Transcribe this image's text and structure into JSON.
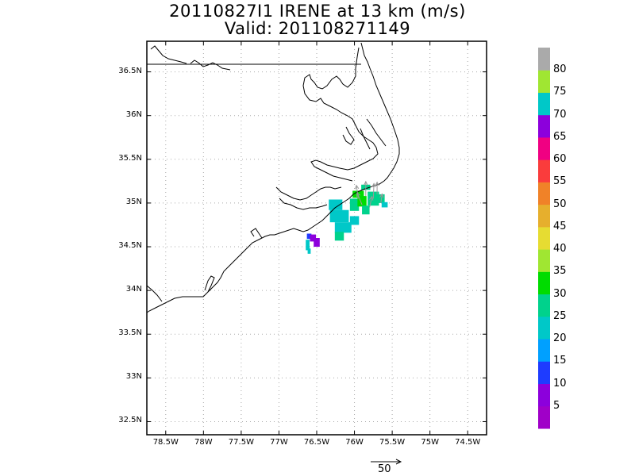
{
  "title_line1": "20110827I1 IRENE at 13 km (m/s)",
  "title_line2": "Valid: 201108271149",
  "map": {
    "lon_range": [
      -78.75,
      -74.25
    ],
    "lat_range": [
      32.35,
      36.85
    ],
    "grid": "dotted",
    "lat_labels": [
      "36.5N",
      "36N",
      "35.5N",
      "35N",
      "34.5N",
      "34N",
      "33.5N",
      "33N",
      "32.5N"
    ],
    "lat_values": [
      36.5,
      36.0,
      35.5,
      35.0,
      34.5,
      34.0,
      33.5,
      33.0,
      32.5
    ],
    "lon_labels": [
      "78.5W",
      "78W",
      "77.5W",
      "77W",
      "76.5W",
      "76W",
      "75.5W",
      "75W",
      "74.5W"
    ],
    "lon_values": [
      -78.5,
      -78.0,
      -77.5,
      -77.0,
      -76.5,
      -76.0,
      -75.5,
      -75.0,
      -74.5
    ]
  },
  "colorbar": {
    "labels": [
      "5",
      "10",
      "15",
      "20",
      "25",
      "30",
      "35",
      "40",
      "45",
      "50",
      "55",
      "60",
      "65",
      "70",
      "75",
      "80"
    ],
    "colors": [
      "#a000c8",
      "#8c00dc",
      "#1e3cff",
      "#00a0ff",
      "#00c8c8",
      "#00d28c",
      "#00dc00",
      "#a0e632",
      "#e6dc32",
      "#e6af2d",
      "#f08228",
      "#fa3c3c",
      "#f00082",
      "#8c00dc",
      "#00c8c8",
      "#a0e632",
      "#aaaaaa"
    ]
  },
  "wind_cells": [
    {
      "lon": -76.6,
      "lat": 34.62,
      "w": 0.06,
      "h": 0.06,
      "v": 12
    },
    {
      "lon": -76.55,
      "lat": 34.6,
      "w": 0.08,
      "h": 0.08,
      "v": 8
    },
    {
      "lon": -76.5,
      "lat": 34.55,
      "w": 0.08,
      "h": 0.1,
      "v": 5
    },
    {
      "lon": -76.62,
      "lat": 34.52,
      "w": 0.05,
      "h": 0.12,
      "v": 22
    },
    {
      "lon": -76.6,
      "lat": 34.45,
      "w": 0.04,
      "h": 0.06,
      "v": 20
    },
    {
      "lon": -76.25,
      "lat": 34.98,
      "w": 0.18,
      "h": 0.12,
      "v": 22
    },
    {
      "lon": -76.2,
      "lat": 34.85,
      "w": 0.25,
      "h": 0.14,
      "v": 22
    },
    {
      "lon": -76.15,
      "lat": 34.72,
      "w": 0.22,
      "h": 0.12,
      "v": 22
    },
    {
      "lon": -76.2,
      "lat": 34.62,
      "w": 0.12,
      "h": 0.1,
      "v": 25
    },
    {
      "lon": -76.0,
      "lat": 34.8,
      "w": 0.12,
      "h": 0.1,
      "v": 22
    },
    {
      "lon": -76.0,
      "lat": 34.98,
      "w": 0.12,
      "h": 0.14,
      "v": 25
    },
    {
      "lon": -75.95,
      "lat": 35.1,
      "w": 0.15,
      "h": 0.08,
      "v": 34
    },
    {
      "lon": -75.9,
      "lat": 35.02,
      "w": 0.12,
      "h": 0.12,
      "v": 33
    },
    {
      "lon": -75.85,
      "lat": 34.92,
      "w": 0.1,
      "h": 0.1,
      "v": 28
    },
    {
      "lon": -75.75,
      "lat": 35.05,
      "w": 0.15,
      "h": 0.16,
      "v": 28
    },
    {
      "lon": -75.65,
      "lat": 35.05,
      "w": 0.1,
      "h": 0.1,
      "v": 26
    },
    {
      "lon": -75.6,
      "lat": 34.98,
      "w": 0.08,
      "h": 0.06,
      "v": 24
    },
    {
      "lon": -75.85,
      "lat": 35.18,
      "w": 0.12,
      "h": 0.06,
      "v": 27
    }
  ],
  "wind_vectors": [
    {
      "lon": -75.95,
      "lat": 35.05,
      "u": -3,
      "v": 22
    },
    {
      "lon": -75.85,
      "lat": 35.08,
      "u": 0,
      "v": 24
    },
    {
      "lon": -75.75,
      "lat": 35.05,
      "u": 1,
      "v": 25
    },
    {
      "lon": -75.9,
      "lat": 34.98,
      "u": -8,
      "v": 20
    },
    {
      "lon": -75.8,
      "lat": 34.95,
      "u": 4,
      "v": 18
    },
    {
      "lon": -75.65,
      "lat": 35.0,
      "u": 2,
      "v": 15
    },
    {
      "lon": -75.7,
      "lat": 35.1,
      "u": 0,
      "v": 20
    }
  ],
  "reference_vector": {
    "label": "50"
  }
}
